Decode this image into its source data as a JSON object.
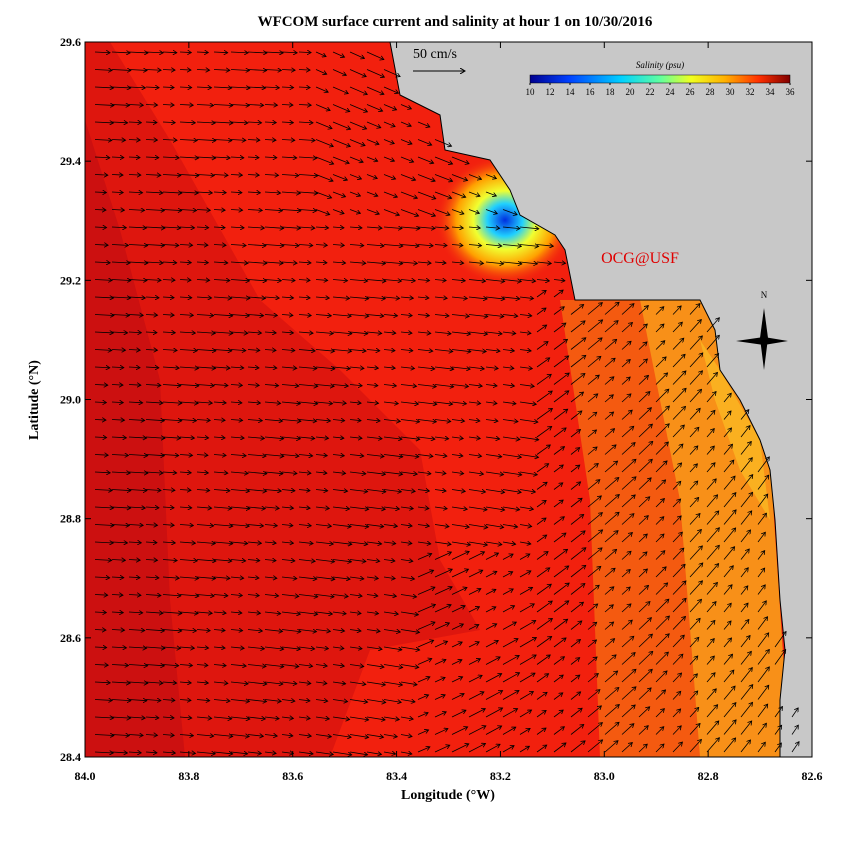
{
  "chart_data": {
    "type": "map",
    "title": "WFCOM surface current and salinity at hour 1 on 10/30/2016",
    "x_label": "Longitude (°W)",
    "y_label": "Latitude (°N)",
    "xlim": [
      84.0,
      82.6
    ],
    "xticks": [
      {
        "value": 84,
        "label": "84.0"
      },
      83.8,
      83.6,
      83.4,
      83.2,
      {
        "value": 83,
        "label": "83.0"
      },
      82.8,
      82.6
    ],
    "ylim": [
      28.4,
      29.6
    ],
    "yticks": [
      28.4,
      28.6,
      28.8,
      {
        "value": 29,
        "label": "29.0"
      },
      29.2,
      29.4,
      29.6
    ],
    "colorbar": {
      "title": "Salinity (psu)",
      "lim": [
        10,
        36
      ],
      "ticks": [
        10,
        12,
        14,
        16,
        18,
        20,
        22,
        24,
        26,
        28,
        30,
        32,
        34,
        36
      ]
    },
    "scale_label": "50 cm/s",
    "annotation": "OCG@USF",
    "compass_label": "N"
  }
}
